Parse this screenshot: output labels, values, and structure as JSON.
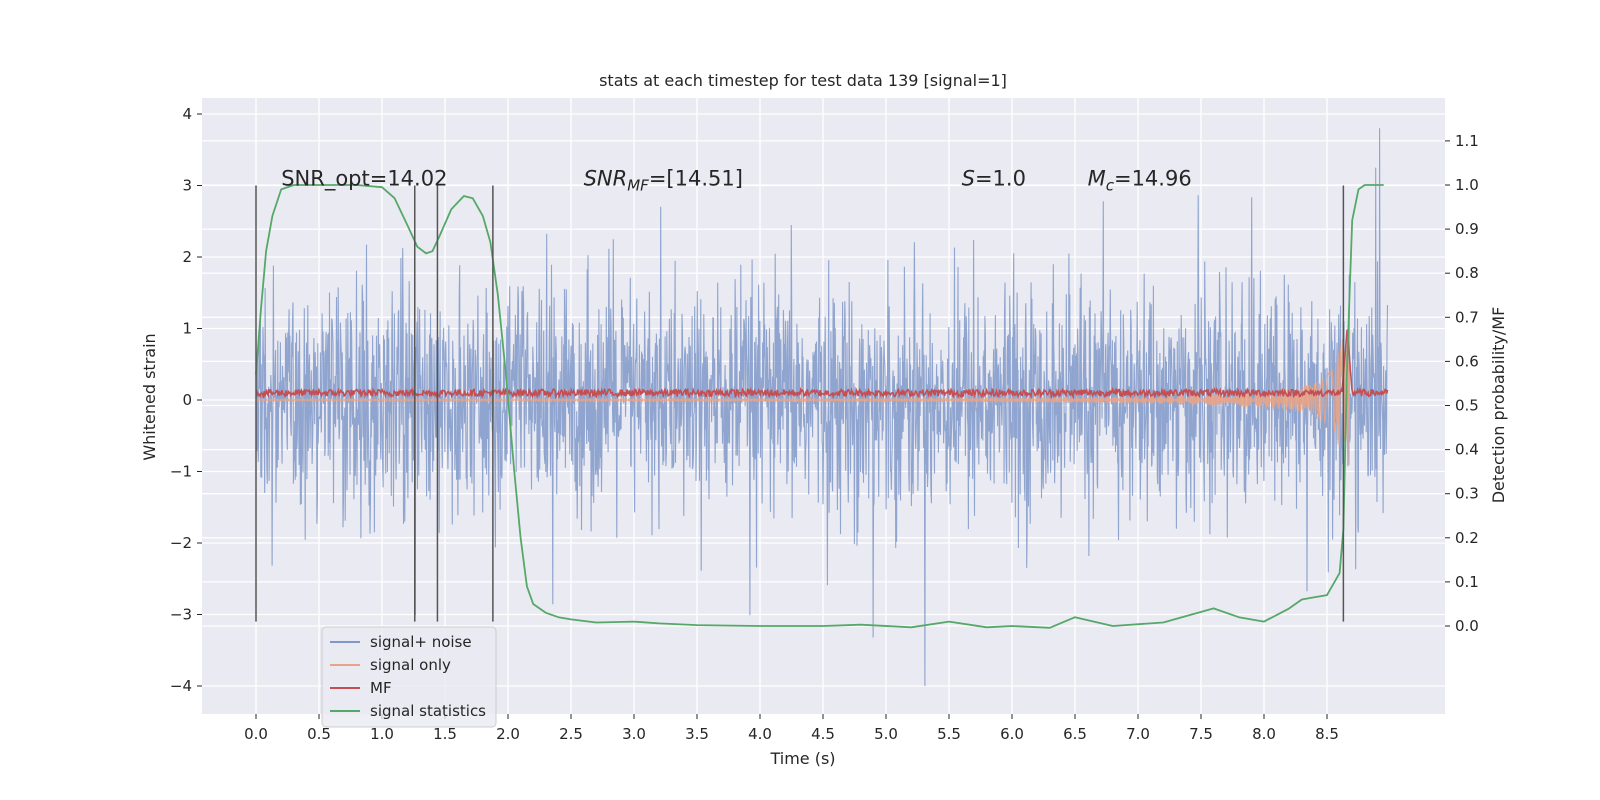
{
  "chart_data": {
    "type": "line",
    "title": "stats at each timestep for test data 139 [signal=1]",
    "xlabel": "Time (s)",
    "ylabel": "Whitened strain",
    "y2label": "Detection probability/MF",
    "xlim": [
      -0.43,
      9.43
    ],
    "ylim": [
      -4.4,
      4.2
    ],
    "y2lim": [
      -0.2,
      1.19
    ],
    "xticks": [
      0.0,
      0.5,
      1.0,
      1.5,
      2.0,
      2.5,
      3.0,
      3.5,
      4.0,
      4.5,
      5.0,
      5.5,
      6.0,
      6.5,
      7.0,
      7.5,
      8.0,
      8.5
    ],
    "xtick_labels": [
      "0.0",
      "0.5",
      "1.0",
      "1.5",
      "2.0",
      "2.5",
      "3.0",
      "3.5",
      "4.0",
      "4.5",
      "5.0",
      "5.5",
      "6.0",
      "6.5",
      "7.0",
      "7.5",
      "8.0",
      "8.5"
    ],
    "yticks": [
      -4,
      -3,
      -2,
      -1,
      0,
      1,
      2,
      3,
      4
    ],
    "ytick_labels": [
      "−4",
      "−3",
      "−2",
      "−1",
      "0",
      "1",
      "2",
      "3",
      "4"
    ],
    "y2ticks": [
      0.0,
      0.1,
      0.2,
      0.3,
      0.4,
      0.5,
      0.6,
      0.7,
      0.8,
      0.9,
      1.0,
      1.1
    ],
    "y2tick_labels": [
      "0.0",
      "0.1",
      "0.2",
      "0.3",
      "0.4",
      "0.5",
      "0.6",
      "0.7",
      "0.8",
      "0.9",
      "1.0",
      "1.1"
    ],
    "grid": true,
    "legend_position": "bottom-left",
    "series": [
      {
        "name": "signal+ noise",
        "color": "#7f98c8",
        "kind": "noise_band",
        "t_start": 0.0,
        "t_end": 8.98,
        "std": 0.78,
        "spike_max": 3.8,
        "spike_min": -4.0
      },
      {
        "name": "signal only",
        "color": "#e8a487",
        "kind": "chirp",
        "t_start": 0.0,
        "t_end": 8.68,
        "peak_amplitude": 1.0,
        "merger_time": 8.66
      },
      {
        "name": "MF",
        "color": "#c44e52",
        "kind": "noisy_line",
        "t_start": 0.0,
        "t_end": 8.98,
        "level": 0.1,
        "spread": 0.05,
        "peak": 1.0,
        "peak_time": 8.66
      },
      {
        "name": "signal statistics",
        "color": "#55a868",
        "axis": "right",
        "x": [
          0.0,
          0.04,
          0.08,
          0.13,
          0.2,
          0.3,
          0.5,
          0.8,
          1.0,
          1.1,
          1.2,
          1.28,
          1.35,
          1.4,
          1.45,
          1.55,
          1.65,
          1.72,
          1.8,
          1.86,
          1.92,
          1.98,
          2.05,
          2.1,
          2.15,
          2.2,
          2.3,
          2.4,
          2.5,
          2.7,
          3.0,
          3.2,
          3.5,
          4.0,
          4.5,
          4.8,
          5.2,
          5.5,
          5.8,
          6.0,
          6.3,
          6.5,
          6.8,
          7.2,
          7.6,
          7.8,
          8.0,
          8.2,
          8.3,
          8.4,
          8.5,
          8.6,
          8.63,
          8.66,
          8.7,
          8.75,
          8.8,
          8.85,
          8.95
        ],
        "y": [
          0.57,
          0.72,
          0.85,
          0.93,
          0.99,
          1.0,
          1.0,
          1.0,
          0.995,
          0.97,
          0.91,
          0.86,
          0.845,
          0.85,
          0.88,
          0.945,
          0.975,
          0.97,
          0.93,
          0.87,
          0.75,
          0.58,
          0.35,
          0.2,
          0.09,
          0.05,
          0.03,
          0.02,
          0.015,
          0.008,
          0.01,
          0.006,
          0.002,
          0.0,
          0.0,
          0.003,
          -0.003,
          0.01,
          -0.003,
          0.0,
          -0.004,
          0.02,
          0.0,
          0.008,
          0.04,
          0.02,
          0.01,
          0.04,
          0.06,
          0.065,
          0.07,
          0.12,
          0.22,
          0.6,
          0.92,
          0.99,
          1.0,
          1.0,
          1.0
        ]
      }
    ],
    "vertical_lines": {
      "color": "#555555",
      "x": [
        0.0,
        1.26,
        1.44,
        1.88,
        8.63
      ],
      "ymin": -3.1,
      "ymax": 3.0
    },
    "annotations": [
      {
        "text": "SNR_opt=14.02",
        "x": 0.2,
        "y": 3.1
      },
      {
        "text_main": "SNR",
        "text_sub": "MF",
        "text_rest": "=[14.51]",
        "x": 2.6,
        "y": 3.1
      },
      {
        "text_main": "S",
        "text_rest": "=1.0",
        "x": 5.6,
        "y": 3.1
      },
      {
        "text_main": "M",
        "text_sub": "c",
        "text_rest": "=14.96",
        "x": 6.6,
        "y": 3.1
      }
    ]
  }
}
